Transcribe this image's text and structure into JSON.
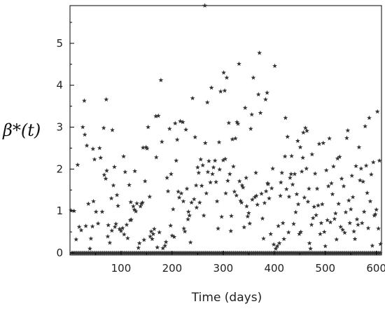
{
  "chart_data": {
    "type": "scatter",
    "title": "",
    "xlabel": "Time (days)",
    "ylabel": "β*(t)",
    "xlim": [
      0,
      610
    ],
    "ylim": [
      -0.05,
      5.9
    ],
    "xticks": [
      100,
      200,
      300,
      400,
      500,
      600
    ],
    "yticks": [
      0,
      1,
      2,
      3,
      4,
      5
    ],
    "grid": false,
    "legend": "none",
    "marker": "star",
    "marker_color": "#333333",
    "series": [
      {
        "points": [
          [
            2,
            1.01
          ],
          [
            8,
            1.0
          ],
          [
            12,
            0.32
          ],
          [
            15,
            2.1
          ],
          [
            18,
            0.62
          ],
          [
            22,
            0.54
          ],
          [
            25,
            3.0
          ],
          [
            28,
            3.63
          ],
          [
            29,
            2.82
          ],
          [
            31,
            0.64
          ],
          [
            33,
            2.56
          ],
          [
            36,
            1.17
          ],
          [
            39,
            0.1
          ],
          [
            41,
            0.34
          ],
          [
            44,
            0.63
          ],
          [
            45,
            2.48
          ],
          [
            46,
            1.23
          ],
          [
            48,
            2.23
          ],
          [
            51,
            0.98
          ],
          [
            55,
            0.7
          ],
          [
            58,
            2.5
          ],
          [
            60,
            2.27
          ],
          [
            63,
            0.98
          ],
          [
            66,
            2.98
          ],
          [
            67,
            1.86
          ],
          [
            70,
            1.77
          ],
          [
            71,
            3.66
          ],
          [
            72,
            1.96
          ],
          [
            74,
            0.39
          ],
          [
            75,
            0.66
          ],
          [
            78,
            0.24
          ],
          [
            81,
            1.3
          ],
          [
            82,
            0.53
          ],
          [
            83,
            2.93
          ],
          [
            85,
            1.61
          ],
          [
            87,
            2.05
          ],
          [
            88,
            0.62
          ],
          [
            90,
            0.69
          ],
          [
            92,
            1.38
          ],
          [
            94,
            1.12
          ],
          [
            97,
            0.57
          ],
          [
            100,
            0.52
          ],
          [
            103,
            0.59
          ],
          [
            105,
            2.3
          ],
          [
            106,
            0.44
          ],
          [
            108,
            1.93
          ],
          [
            111,
            0.67
          ],
          [
            113,
            0.35
          ],
          [
            116,
            1.62
          ],
          [
            118,
            0.78
          ],
          [
            119,
            1.21
          ],
          [
            120,
            0.79
          ],
          [
            124,
            1.11
          ],
          [
            126,
            1.03
          ],
          [
            127,
            1.95
          ],
          [
            129,
            0.99
          ],
          [
            131,
            1.18
          ],
          [
            134,
            0.12
          ],
          [
            136,
            0.23
          ],
          [
            138,
            1.11
          ],
          [
            140,
            1.17
          ],
          [
            142,
            1.2
          ],
          [
            143,
            2.51
          ],
          [
            145,
            0.31
          ],
          [
            147,
            1.71
          ],
          [
            149,
            2.52
          ],
          [
            151,
            2.49
          ],
          [
            153,
            3.0
          ],
          [
            156,
            1.34
          ],
          [
            157,
            0.39
          ],
          [
            159,
            0.51
          ],
          [
            161,
            0.33
          ],
          [
            163,
            0.45
          ],
          [
            165,
            0.57
          ],
          [
            168,
            3.26
          ],
          [
            169,
            2.28
          ],
          [
            171,
            0.13
          ],
          [
            173,
            3.27
          ],
          [
            175,
            0.49
          ],
          [
            178,
            4.12
          ],
          [
            180,
            2.65
          ],
          [
            182,
            0.11
          ],
          [
            186,
            0.17
          ],
          [
            188,
            0.26
          ],
          [
            190,
            1.79
          ],
          [
            192,
            1.47
          ],
          [
            195,
            2.96
          ],
          [
            197,
            0.65
          ],
          [
            198,
            1.88
          ],
          [
            200,
            0.41
          ],
          [
            202,
            1.04
          ],
          [
            204,
            0.38
          ],
          [
            206,
            3.09
          ],
          [
            208,
            2.2
          ],
          [
            210,
            2.7
          ],
          [
            212,
            1.46
          ],
          [
            214,
            1.32
          ],
          [
            216,
            3.14
          ],
          [
            218,
            1.42
          ],
          [
            221,
            3.12
          ],
          [
            222,
            1.23
          ],
          [
            223,
            0.58
          ],
          [
            225,
            0.51
          ],
          [
            227,
            2.94
          ],
          [
            229,
            1.53
          ],
          [
            231,
            0.8
          ],
          [
            232,
            0.98
          ],
          [
            234,
            0.89
          ],
          [
            236,
            0.25
          ],
          [
            238,
            1.2
          ],
          [
            240,
            3.69
          ],
          [
            243,
            1.28
          ],
          [
            245,
            2.76
          ],
          [
            247,
            1.61
          ],
          [
            248,
            1.08
          ],
          [
            250,
            2.04
          ],
          [
            252,
            1.91
          ],
          [
            254,
            1.2
          ],
          [
            256,
            2.23
          ],
          [
            258,
            1.6
          ],
          [
            260,
            2.09
          ],
          [
            262,
            0.89
          ],
          [
            264,
            5.9
          ],
          [
            265,
            2.62
          ],
          [
            267,
            1.42
          ],
          [
            269,
            3.59
          ],
          [
            270,
            1.93
          ],
          [
            272,
            2.19
          ],
          [
            275,
            1.68
          ],
          [
            277,
            3.94
          ],
          [
            279,
            1.88
          ],
          [
            281,
            2.04
          ],
          [
            284,
            2.2
          ],
          [
            286,
            1.69
          ],
          [
            288,
            1.23
          ],
          [
            290,
            0.58
          ],
          [
            292,
            2.64
          ],
          [
            293,
            1.99
          ],
          [
            295,
            3.85
          ],
          [
            297,
            0.86
          ],
          [
            300,
            2.21
          ],
          [
            301,
            4.3
          ],
          [
            303,
            3.87
          ],
          [
            304,
            2.24
          ],
          [
            305,
            1.42
          ],
          [
            307,
            4.18
          ],
          [
            309,
            1.72
          ],
          [
            311,
            3.1
          ],
          [
            313,
            1.88
          ],
          [
            315,
            0.52
          ],
          [
            316,
            0.88
          ],
          [
            318,
            2.71
          ],
          [
            320,
            2.06
          ],
          [
            322,
            1.46
          ],
          [
            324,
            2.73
          ],
          [
            326,
            1.37
          ],
          [
            327,
            3.12
          ],
          [
            329,
            3.08
          ],
          [
            331,
            4.51
          ],
          [
            332,
            1.71
          ],
          [
            334,
            1.24
          ],
          [
            336,
            1.2
          ],
          [
            337,
            1.61
          ],
          [
            339,
            1.56
          ],
          [
            341,
            0.61
          ],
          [
            343,
            3.46
          ],
          [
            345,
            1.79
          ],
          [
            346,
            1.11
          ],
          [
            348,
            0.87
          ],
          [
            350,
            0.95
          ],
          [
            352,
            0.7
          ],
          [
            354,
            2.96
          ],
          [
            356,
            3.3
          ],
          [
            357,
            1.27
          ],
          [
            359,
            4.18
          ],
          [
            362,
            1.33
          ],
          [
            364,
            1.91
          ],
          [
            365,
            1.36
          ],
          [
            367,
            1.15
          ],
          [
            369,
            3.78
          ],
          [
            371,
            4.77
          ],
          [
            373,
            3.34
          ],
          [
            375,
            1.41
          ],
          [
            377,
            0.82
          ],
          [
            379,
            0.34
          ],
          [
            381,
            1.19
          ],
          [
            383,
            3.66
          ],
          [
            384,
            1.47
          ],
          [
            386,
            3.82
          ],
          [
            387,
            1.66
          ],
          [
            388,
            1.64
          ],
          [
            390,
            1.3
          ],
          [
            393,
            0.45
          ],
          [
            395,
            1.54
          ],
          [
            397,
            2.01
          ],
          [
            399,
            0.2
          ],
          [
            401,
            4.46
          ],
          [
            403,
            0.1
          ],
          [
            406,
            0.16
          ],
          [
            408,
            0.64
          ],
          [
            410,
            0.23
          ],
          [
            412,
            1.36
          ],
          [
            413,
            1.68
          ],
          [
            415,
            1.91
          ],
          [
            417,
            0.71
          ],
          [
            419,
            0.33
          ],
          [
            421,
            2.3
          ],
          [
            422,
            3.22
          ],
          [
            424,
            1.52
          ],
          [
            426,
            2.77
          ],
          [
            428,
            0.49
          ],
          [
            429,
            1.34
          ],
          [
            431,
            1.79
          ],
          [
            433,
            1.88
          ],
          [
            434,
            2.31
          ],
          [
            436,
            1.63
          ],
          [
            438,
            0.69
          ],
          [
            440,
            1.88
          ],
          [
            442,
            0.97
          ],
          [
            444,
            1.4
          ],
          [
            446,
            2.67
          ],
          [
            447,
            1.16
          ],
          [
            449,
            0.45
          ],
          [
            451,
            2.52
          ],
          [
            452,
            0.5
          ],
          [
            454,
            1.94
          ],
          [
            456,
            2.27
          ],
          [
            457,
            2.87
          ],
          [
            459,
            1.32
          ],
          [
            461,
            2.98
          ],
          [
            463,
            2.01
          ],
          [
            464,
            2.91
          ],
          [
            466,
            1.22
          ],
          [
            468,
            1.53
          ],
          [
            469,
            0.23
          ],
          [
            471,
            0.1
          ],
          [
            473,
            0.67
          ],
          [
            474,
            2.35
          ],
          [
            476,
            0.83
          ],
          [
            478,
            1.1
          ],
          [
            480,
            1.89
          ],
          [
            482,
            0.9
          ],
          [
            484,
            1.53
          ],
          [
            486,
            1.13
          ],
          [
            488,
            2.6
          ],
          [
            490,
            0.45
          ],
          [
            492,
            0.71
          ],
          [
            494,
            1.16
          ],
          [
            496,
            2.62
          ],
          [
            498,
            0.5
          ],
          [
            500,
            0.16
          ],
          [
            502,
            1.97
          ],
          [
            504,
            0.78
          ],
          [
            506,
            1.59
          ],
          [
            508,
            2.73
          ],
          [
            510,
            0.73
          ],
          [
            512,
            1.66
          ],
          [
            514,
            1.4
          ],
          [
            516,
            2.06
          ],
          [
            518,
            0.81
          ],
          [
            520,
            0.94
          ],
          [
            522,
            0.32
          ],
          [
            524,
            2.25
          ],
          [
            526,
            1.17
          ],
          [
            528,
            2.29
          ],
          [
            530,
            0.62
          ],
          [
            532,
            1.77
          ],
          [
            534,
            0.55
          ],
          [
            536,
            1.59
          ],
          [
            538,
            0.48
          ],
          [
            540,
            0.97
          ],
          [
            542,
            2.74
          ],
          [
            544,
            2.92
          ],
          [
            546,
            1.25
          ],
          [
            548,
            0.71
          ],
          [
            550,
            1.04
          ],
          [
            552,
            1.84
          ],
          [
            554,
            1.33
          ],
          [
            556,
            0.51
          ],
          [
            558,
            0.33
          ],
          [
            560,
            2.07
          ],
          [
            562,
            0.8
          ],
          [
            564,
            0.67
          ],
          [
            566,
            2.52
          ],
          [
            568,
            1.73
          ],
          [
            570,
            2.01
          ],
          [
            572,
            0.71
          ],
          [
            574,
            1.7
          ],
          [
            576,
            0.98
          ],
          [
            578,
            3.02
          ],
          [
            580,
            2.08
          ],
          [
            582,
            1.43
          ],
          [
            584,
            0.59
          ],
          [
            586,
            3.22
          ],
          [
            588,
            1.23
          ],
          [
            590,
            1.87
          ],
          [
            592,
            0.17
          ],
          [
            594,
            2.16
          ],
          [
            596,
            0.89
          ],
          [
            598,
            0.92
          ],
          [
            600,
            1.03
          ],
          [
            602,
            3.37
          ],
          [
            604,
            0.58
          ],
          [
            606,
            2.2
          ],
          [
            608,
            0.21
          ]
        ]
      }
    ]
  }
}
